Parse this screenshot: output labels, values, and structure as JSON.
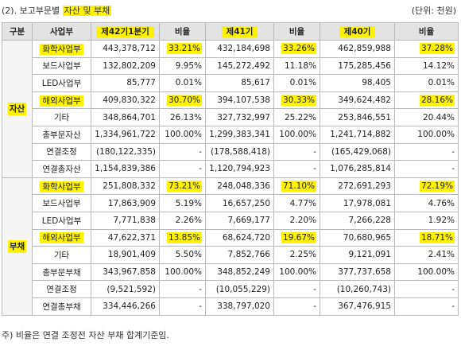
{
  "caption": {
    "prefix": "(2). 보고부문별 ",
    "highlight": "자산 및 부채"
  },
  "unit": "(단위: 천원)",
  "headers": [
    "구분",
    "사업부",
    "제42기1분기",
    "비율",
    "제41기",
    "비율",
    "제40기",
    "비율"
  ],
  "header_highlight": [
    false,
    false,
    true,
    false,
    true,
    false,
    true,
    false
  ],
  "groups": [
    {
      "label": "자산",
      "rows": [
        {
          "name": "화학사업부",
          "hl_name": true,
          "v1": "443,378,712",
          "r1": "33.21%",
          "h1": true,
          "v2": "432,184,698",
          "r2": "33.26%",
          "h2": true,
          "v3": "462,859,988",
          "r3": "37.28%",
          "h3": true
        },
        {
          "name": "보드사업부",
          "hl_name": false,
          "v1": "132,802,209",
          "r1": "9.95%",
          "h1": false,
          "v2": "145,272,492",
          "r2": "11.18%",
          "h2": false,
          "v3": "175,285,456",
          "r3": "14.12%",
          "h3": false
        },
        {
          "name": "LED사업부",
          "hl_name": false,
          "v1": "85,777",
          "r1": "0.01%",
          "h1": false,
          "v2": "85,617",
          "r2": "0.01%",
          "h2": false,
          "v3": "98,405",
          "r3": "0.01%",
          "h3": false
        },
        {
          "name": "해외사업부",
          "hl_name": true,
          "v1": "409,830,322",
          "r1": "30.70%",
          "h1": true,
          "v2": "394,107,538",
          "r2": "30.33%",
          "h2": true,
          "v3": "349,624,482",
          "r3": "28.16%",
          "h3": true
        },
        {
          "name": "기타",
          "hl_name": false,
          "v1": "348,864,701",
          "r1": "26.13%",
          "h1": false,
          "v2": "327,732,997",
          "r2": "25.22%",
          "h2": false,
          "v3": "253,846,551",
          "r3": "20.44%",
          "h3": false
        },
        {
          "name": "총부문자산",
          "hl_name": false,
          "v1": "1,334,961,722",
          "r1": "100.00%",
          "h1": false,
          "v2": "1,299,383,341",
          "r2": "100.00%",
          "h2": false,
          "v3": "1,241,714,882",
          "r3": "100.00%",
          "h3": false
        },
        {
          "name": "연결조정",
          "hl_name": false,
          "v1": "(180,122,335)",
          "r1": "-",
          "h1": false,
          "v2": "(178,588,418)",
          "r2": "-",
          "h2": false,
          "v3": "(165,429,068)",
          "r3": "-",
          "h3": false
        },
        {
          "name": "연결총자산",
          "hl_name": false,
          "v1": "1,154,839,386",
          "r1": "-",
          "h1": false,
          "v2": "1,120,794,923",
          "r2": "-",
          "h2": false,
          "v3": "1,076,285,814",
          "r3": "-",
          "h3": false
        }
      ]
    },
    {
      "label": "부채",
      "rows": [
        {
          "name": "화학사업부",
          "hl_name": true,
          "v1": "251,808,332",
          "r1": "73.21%",
          "h1": true,
          "v2": "248,048,336",
          "r2": "71.10%",
          "h2": true,
          "v3": "272,691,293",
          "r3": "72.19%",
          "h3": true
        },
        {
          "name": "보드사업부",
          "hl_name": false,
          "v1": "17,863,909",
          "r1": "5.19%",
          "h1": false,
          "v2": "16,657,250",
          "r2": "4.77%",
          "h2": false,
          "v3": "17,978,081",
          "r3": "4.76%",
          "h3": false
        },
        {
          "name": "LED사업부",
          "hl_name": false,
          "v1": "7,771,838",
          "r1": "2.26%",
          "h1": false,
          "v2": "7,669,177",
          "r2": "2.20%",
          "h2": false,
          "v3": "7,266,228",
          "r3": "1.92%",
          "h3": false
        },
        {
          "name": "해외사업부",
          "hl_name": true,
          "v1": "47,622,371",
          "r1": "13.85%",
          "h1": true,
          "v2": "68,624,720",
          "r2": "19.67%",
          "h2": true,
          "v3": "70,680,965",
          "r3": "18.71%",
          "h3": true
        },
        {
          "name": "기타",
          "hl_name": false,
          "v1": "18,901,409",
          "r1": "5.50%",
          "h1": false,
          "v2": "7,852,766",
          "r2": "2.25%",
          "h2": false,
          "v3": "9,121,091",
          "r3": "2.41%",
          "h3": false
        },
        {
          "name": "총부문부채",
          "hl_name": false,
          "v1": "343,967,858",
          "r1": "100.00%",
          "h1": false,
          "v2": "348,852,249",
          "r2": "100.00%",
          "h2": false,
          "v3": "377,737,658",
          "r3": "100.00%",
          "h3": false
        },
        {
          "name": "연결조정",
          "hl_name": false,
          "v1": "(9,521,592)",
          "r1": "-",
          "h1": false,
          "v2": "(10,055,229)",
          "r2": "-",
          "h2": false,
          "v3": "(10,260,743)",
          "r3": "-",
          "h3": false
        },
        {
          "name": "연결총부채",
          "hl_name": false,
          "v1": "334,446,266",
          "r1": "-",
          "h1": false,
          "v2": "338,797,020",
          "r2": "-",
          "h2": false,
          "v3": "367,476,915",
          "r3": "-",
          "h3": false
        }
      ]
    }
  ],
  "footnote": "주) 비율은 연결 조정전 자산 부채 합계기준임.",
  "colors": {
    "highlight": "#fff200",
    "header_bg": "#e3e3e3",
    "border": "#b9b9b9"
  }
}
